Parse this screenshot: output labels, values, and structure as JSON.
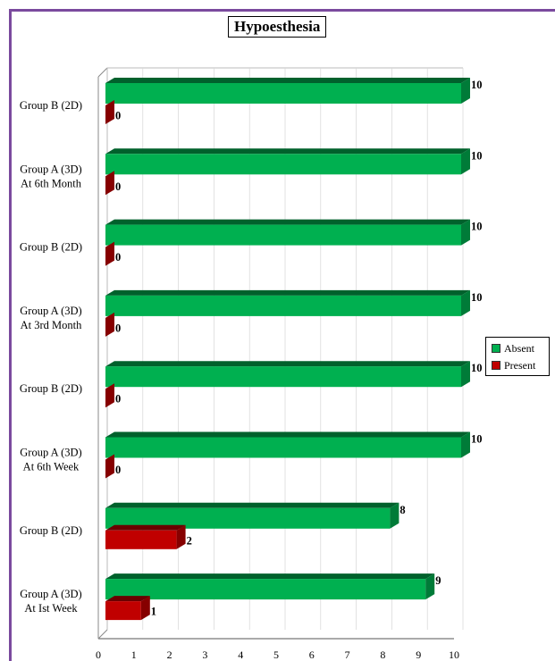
{
  "chart_data": {
    "type": "bar",
    "orientation": "horizontal",
    "title": "Hypoesthesia",
    "categories": [
      "Group A (3D)\nAt Ist Week",
      "Group B (2D)",
      "Group A (3D)\nAt 6th Week",
      "Group B (2D)",
      "Group A (3D)\nAt 3rd Month",
      "Group B (2D)",
      "Group A (3D)\nAt 6th Month",
      "Group B (2D)"
    ],
    "series": [
      {
        "name": "Absent",
        "color": "#00b050",
        "values": [
          9,
          8,
          10,
          10,
          10,
          10,
          10,
          10
        ]
      },
      {
        "name": "Present",
        "color": "#c00000",
        "values": [
          1,
          2,
          0,
          0,
          0,
          0,
          0,
          0
        ]
      }
    ],
    "xlim": [
      0,
      10
    ],
    "xticks": [
      "0",
      "1",
      "2",
      "3",
      "4",
      "5",
      "6",
      "7",
      "8",
      "9",
      "10"
    ],
    "grid": true,
    "legend_position": "right"
  }
}
